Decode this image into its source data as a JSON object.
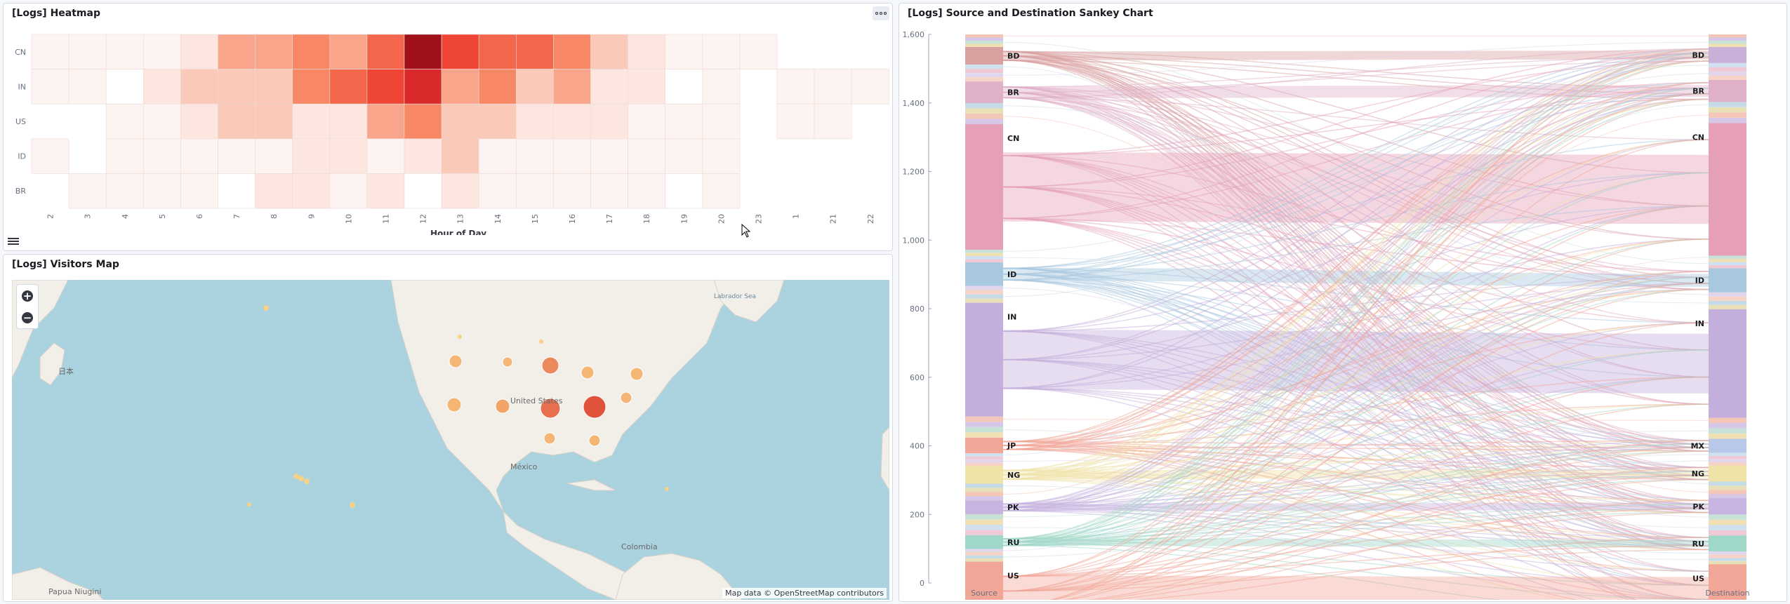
{
  "heatmap": {
    "title": "[Logs] Heatmap",
    "x_label": "Hour of Day",
    "menu_icon": "options-icon",
    "legend_icon": "list-icon",
    "chart_data": {
      "type": "heatmap",
      "y": [
        "CN",
        "IN",
        "US",
        "ID",
        "BR"
      ],
      "x": [
        "2",
        "3",
        "4",
        "5",
        "6",
        "7",
        "8",
        "9",
        "10",
        "11",
        "12",
        "13",
        "14",
        "15",
        "16",
        "17",
        "18",
        "19",
        "20",
        "23",
        "1",
        "21",
        "22"
      ],
      "values": [
        [
          1,
          1,
          1,
          1,
          2,
          4,
          4,
          5,
          4,
          6,
          10,
          7,
          6,
          6,
          5,
          3,
          2,
          1,
          1,
          1,
          null,
          null,
          null
        ],
        [
          1,
          1,
          0,
          2,
          3,
          3,
          3,
          5,
          6,
          7,
          8,
          4,
          5,
          3,
          4,
          2,
          2,
          0,
          1,
          null,
          1,
          1,
          1
        ],
        [
          null,
          null,
          1,
          1,
          2,
          3,
          3,
          2,
          2,
          4,
          5,
          3,
          3,
          2,
          2,
          2,
          1,
          1,
          1,
          null,
          1,
          1,
          null
        ],
        [
          1,
          null,
          1,
          1,
          1,
          1,
          1,
          2,
          2,
          1,
          2,
          3,
          1,
          1,
          1,
          1,
          1,
          1,
          1,
          null,
          null,
          null,
          null
        ],
        [
          null,
          1,
          1,
          1,
          1,
          0,
          2,
          2,
          1,
          2,
          0,
          2,
          1,
          1,
          1,
          1,
          1,
          0,
          1,
          null,
          null,
          null,
          null
        ]
      ],
      "colors": {
        "0": "#ffffff",
        "1": "#fdf3f1",
        "2": "#fde6df",
        "3": "#fbc9b7",
        "4": "#f9a58b",
        "5": "#f88765",
        "6": "#f4664b",
        "7": "#ef4535",
        "8": "#d9292a",
        "10": "#a01018"
      }
    }
  },
  "map": {
    "title": "[Logs] Visitors Map",
    "zoom_in": "+",
    "zoom_out": "−",
    "attribution": "Map data © OpenStreetMap contributors",
    "labels": [
      "United States",
      "México",
      "Colombia",
      "Papua Niugini",
      "日本",
      "Labrador Sea"
    ],
    "marker_colors": {
      "low": "#f7d08a",
      "mid": "#f4b575",
      "high": "#e8704f",
      "max": "#e0533b"
    }
  },
  "sankey": {
    "title": "[Logs] Source and Destination Sankey Chart",
    "chart_data": {
      "type": "sankey",
      "ylim": [
        0,
        1600
      ],
      "y_ticks": [
        "0",
        "200",
        "400",
        "600",
        "800",
        "1,000",
        "1,200",
        "1,400",
        "1,600"
      ],
      "source_axis_label": "Source",
      "destination_axis_label": "Destination",
      "source_nodes": [
        {
          "label": "BD",
          "value": 45,
          "color": "#d9a0a0"
        },
        {
          "label": "BR",
          "value": 55,
          "color": "#dfb0c8"
        },
        {
          "label": "CN",
          "value": 320,
          "color": "#e5a0b8"
        },
        {
          "label": "ID",
          "value": 60,
          "color": "#a8c8e0"
        },
        {
          "label": "IN",
          "value": 290,
          "color": "#c4aedc"
        },
        {
          "label": "JP",
          "value": 40,
          "color": "#f2a698"
        },
        {
          "label": "NG",
          "value": 45,
          "color": "#efe3a8"
        },
        {
          "label": "PK",
          "value": 35,
          "color": "#c8b4e0"
        },
        {
          "label": "RU",
          "value": 35,
          "color": "#9fd8c8"
        },
        {
          "label": "US",
          "value": 150,
          "color": "#f2a698"
        }
      ],
      "destination_nodes": [
        {
          "label": "BD",
          "value": 40,
          "color": "#c9b0d8"
        },
        {
          "label": "BR",
          "value": 55,
          "color": "#dfb0c8"
        },
        {
          "label": "CN",
          "value": 330,
          "color": "#e5a0b8"
        },
        {
          "label": "ID",
          "value": 60,
          "color": "#a8c8e0"
        },
        {
          "label": "IN",
          "value": 270,
          "color": "#c4aedc"
        },
        {
          "label": "MX",
          "value": 35,
          "color": "#b8c8e8"
        },
        {
          "label": "NG",
          "value": 40,
          "color": "#efe3a8"
        },
        {
          "label": "PK",
          "value": 40,
          "color": "#c8b4e0"
        },
        {
          "label": "RU",
          "value": 40,
          "color": "#9fd8c8"
        },
        {
          "label": "US",
          "value": 140,
          "color": "#f2a698"
        }
      ]
    }
  }
}
